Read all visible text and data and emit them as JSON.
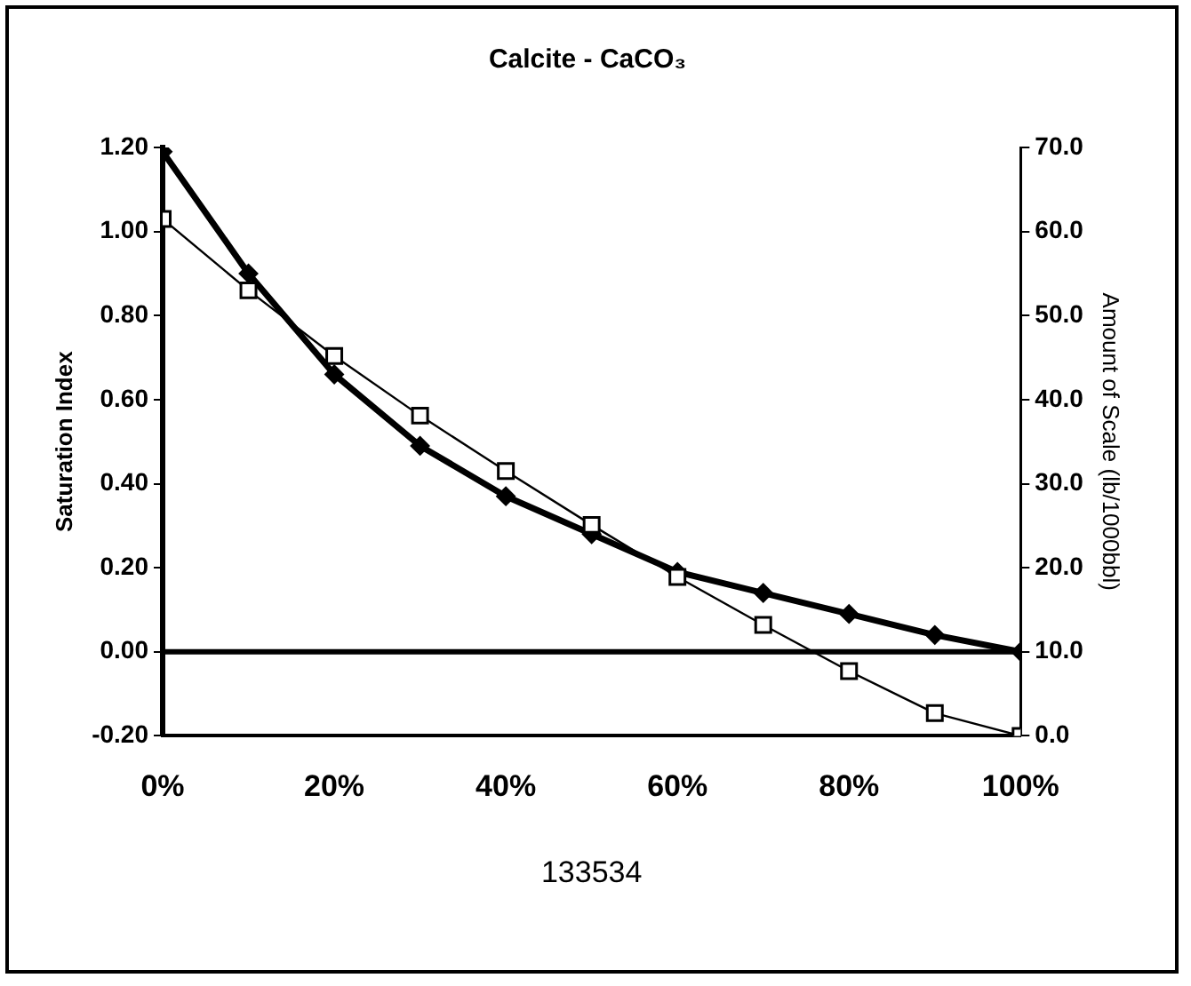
{
  "chart_data": {
    "type": "line",
    "title": "Calcite - CaCO₃",
    "xlabel": "133534",
    "ylabel": "Saturation Index",
    "y2label": "Amount of Scale (lb/1000bbl)",
    "x": [
      0,
      10,
      20,
      30,
      40,
      50,
      60,
      70,
      80,
      90,
      100
    ],
    "series": [
      {
        "color": "#000000",
        "marker": "diamond",
        "values": [
          1.19,
          0.9,
          0.66,
          0.49,
          0.37,
          0.28,
          0.19,
          0.14,
          0.09,
          0.04,
          0.0
        ]
      },
      {
        "color": "#000000",
        "marker": "square",
        "axis": "y2",
        "values": [
          61.5,
          53.0,
          45.2,
          38.1,
          31.5,
          25.1,
          18.9,
          13.2,
          7.7,
          2.7,
          0.0
        ]
      }
    ],
    "xlim": [
      0,
      100
    ],
    "xticks": [
      {
        "value": 0,
        "label": "0%"
      },
      {
        "value": 20,
        "label": "20%"
      },
      {
        "value": 40,
        "label": "40%"
      },
      {
        "value": 60,
        "label": "60%"
      },
      {
        "value": 80,
        "label": "80%"
      },
      {
        "value": 100,
        "label": "100%"
      }
    ],
    "ylim": [
      -0.2,
      1.2
    ],
    "yticks": [
      {
        "value": -0.2,
        "label": "-0.20"
      },
      {
        "value": 0,
        "label": "0.00"
      },
      {
        "value": 0.2,
        "label": "0.20"
      },
      {
        "value": 0.4,
        "label": "0.40"
      },
      {
        "value": 0.6,
        "label": "0.60"
      },
      {
        "value": 0.8,
        "label": "0.80"
      },
      {
        "value": 1.0,
        "label": "1.00"
      },
      {
        "value": 1.2,
        "label": "1.20"
      }
    ],
    "y2lim": [
      0,
      70
    ],
    "y2ticks": [
      {
        "value": 0,
        "label": "0.0"
      },
      {
        "value": 10,
        "label": "10.0"
      },
      {
        "value": 20,
        "label": "20.0"
      },
      {
        "value": 30,
        "label": "30.0"
      },
      {
        "value": 40,
        "label": "40.0"
      },
      {
        "value": 50,
        "label": "50.0"
      },
      {
        "value": 60,
        "label": "60.0"
      },
      {
        "value": 70,
        "label": "70.0"
      }
    ],
    "ref_lines": [
      {
        "axis": "y",
        "value": 0,
        "color": "#000000"
      }
    ],
    "grid": false,
    "legend": false,
    "line_style": "solid"
  }
}
